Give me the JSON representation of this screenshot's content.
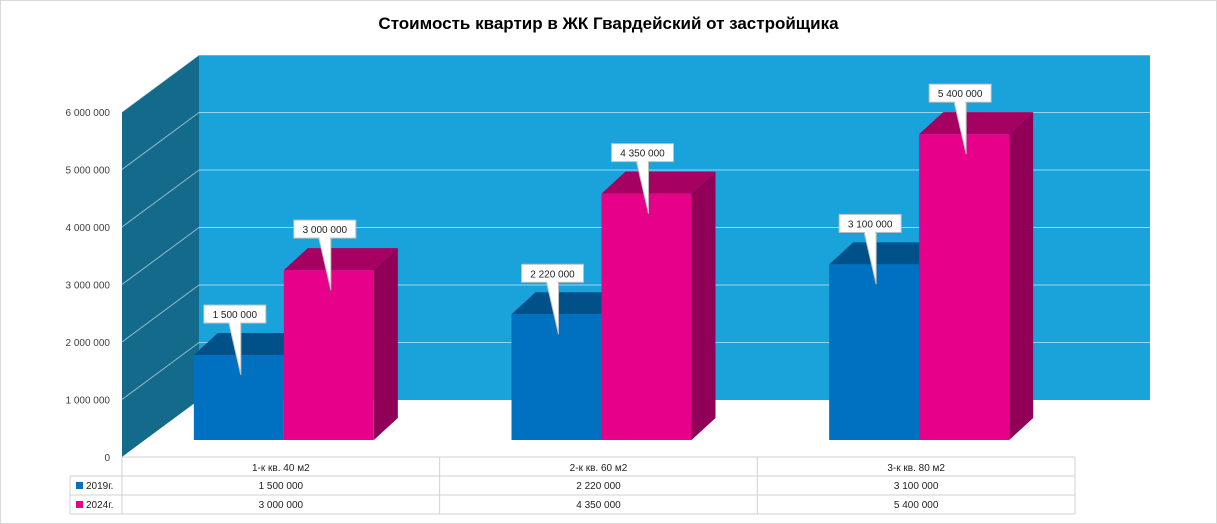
{
  "chart_data": {
    "type": "bar",
    "title": "Стоимость квартир  в ЖК Гвардейский от застройщика",
    "categories": [
      "1-к кв. 40 м2",
      "2-к кв. 60 м2",
      "3-к кв. 80 м2"
    ],
    "series": [
      {
        "name": "2019г.",
        "values": [
          1500000,
          2220000,
          3100000
        ],
        "labels": [
          "1 500 000",
          "2 220 000",
          "3 100 000"
        ],
        "color": "#0070c0"
      },
      {
        "name": "2024г.",
        "values": [
          3000000,
          4350000,
          5400000
        ],
        "labels": [
          "3 000 000",
          "4 350 000",
          "5 400 000"
        ],
        "color": "#e6008a"
      }
    ],
    "yticks": [
      "0",
      "1 000 000",
      "2 000 000",
      "3 000 000",
      "4 000 000",
      "5 000 000",
      "6 000 000"
    ],
    "ylim": [
      0,
      6000000
    ],
    "xlabel": "",
    "ylabel": "",
    "grid": true,
    "legend": "data-table",
    "style": "3d-column",
    "wall_color": "#1aa3db"
  }
}
